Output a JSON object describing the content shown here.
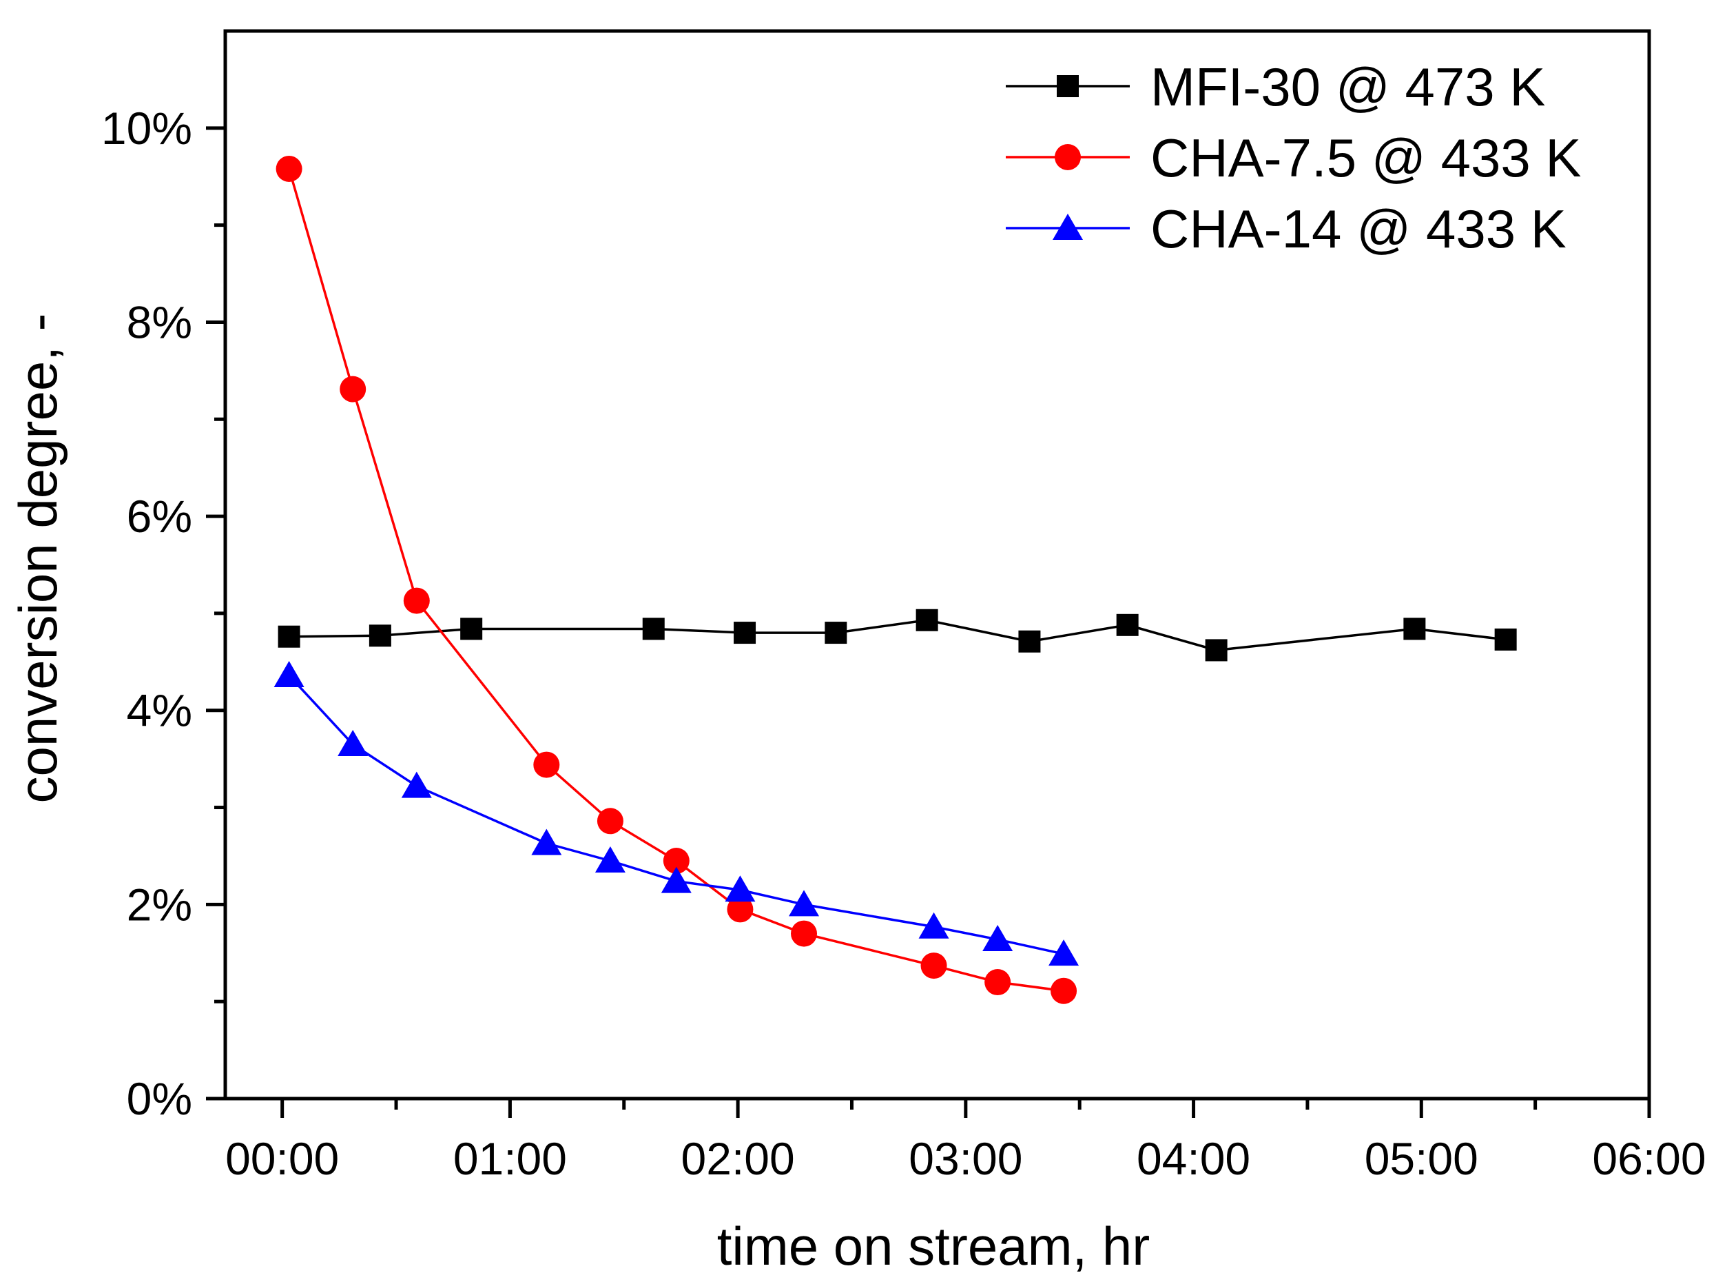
{
  "chart_data": {
    "type": "line",
    "title": "",
    "xlabel": "time on stream, hr",
    "ylabel": "conversion degree, -",
    "x_unit": "hours",
    "xlim": [
      -0.25,
      6.0
    ],
    "ylim": [
      0,
      0.11
    ],
    "x_ticks": [
      0,
      1,
      2,
      3,
      4,
      5,
      6
    ],
    "x_tick_labels": [
      "00:00",
      "01:00",
      "02:00",
      "03:00",
      "04:00",
      "05:00",
      "06:00"
    ],
    "y_ticks": [
      0,
      0.02,
      0.04,
      0.06,
      0.08,
      0.1
    ],
    "y_tick_labels": [
      "0%",
      "2%",
      "4%",
      "6%",
      "8%",
      "10%"
    ],
    "grid": false,
    "legend_position": "top-right",
    "series": [
      {
        "name": "MFI-30 @ 473 K",
        "color": "#000000",
        "marker": "square",
        "x": [
          0.03,
          0.43,
          0.83,
          1.63,
          2.03,
          2.43,
          2.83,
          3.28,
          3.71,
          4.1,
          4.97,
          5.37
        ],
        "values": [
          0.0476,
          0.0477,
          0.0484,
          0.0484,
          0.048,
          0.048,
          0.0493,
          0.0471,
          0.0488,
          0.0462,
          0.0484,
          0.0473
        ]
      },
      {
        "name": "CHA-7.5 @ 433 K",
        "color": "#ff0000",
        "marker": "circle",
        "x": [
          0.03,
          0.31,
          0.59,
          1.16,
          1.44,
          1.73,
          2.01,
          2.29,
          2.86,
          3.14,
          3.43
        ],
        "values": [
          0.0958,
          0.0731,
          0.0513,
          0.0344,
          0.0286,
          0.0245,
          0.0195,
          0.017,
          0.0137,
          0.012,
          0.0111
        ]
      },
      {
        "name": "CHA-14 @ 433 K",
        "color": "#0000ff",
        "marker": "triangle",
        "x": [
          0.03,
          0.31,
          0.59,
          1.16,
          1.44,
          1.73,
          2.01,
          2.29,
          2.86,
          3.14,
          3.43
        ],
        "values": [
          0.0436,
          0.0365,
          0.0322,
          0.0263,
          0.0245,
          0.0224,
          0.0215,
          0.02,
          0.0177,
          0.0164,
          0.0149
        ]
      }
    ]
  }
}
